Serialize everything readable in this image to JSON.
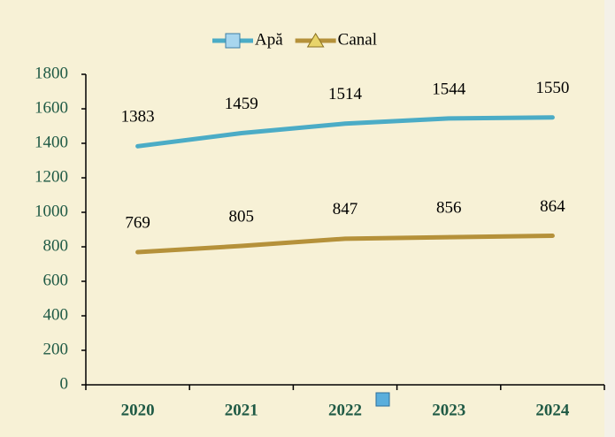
{
  "chart_data": {
    "type": "line",
    "categories": [
      "2020",
      "2021",
      "2022",
      "2023",
      "2024"
    ],
    "series": [
      {
        "name": "Apă",
        "color": "#4bacc6",
        "marker": "square",
        "values": [
          1383,
          1459,
          1514,
          1544,
          1550
        ]
      },
      {
        "name": "Canal",
        "color": "#b5913a",
        "marker": "triangle",
        "values": [
          769,
          805,
          847,
          856,
          864
        ]
      }
    ],
    "ylim": [
      0,
      1800
    ],
    "yticks": [
      0,
      200,
      400,
      600,
      800,
      1000,
      1200,
      1400,
      1600,
      1800
    ],
    "grid": false,
    "legend": "top"
  }
}
